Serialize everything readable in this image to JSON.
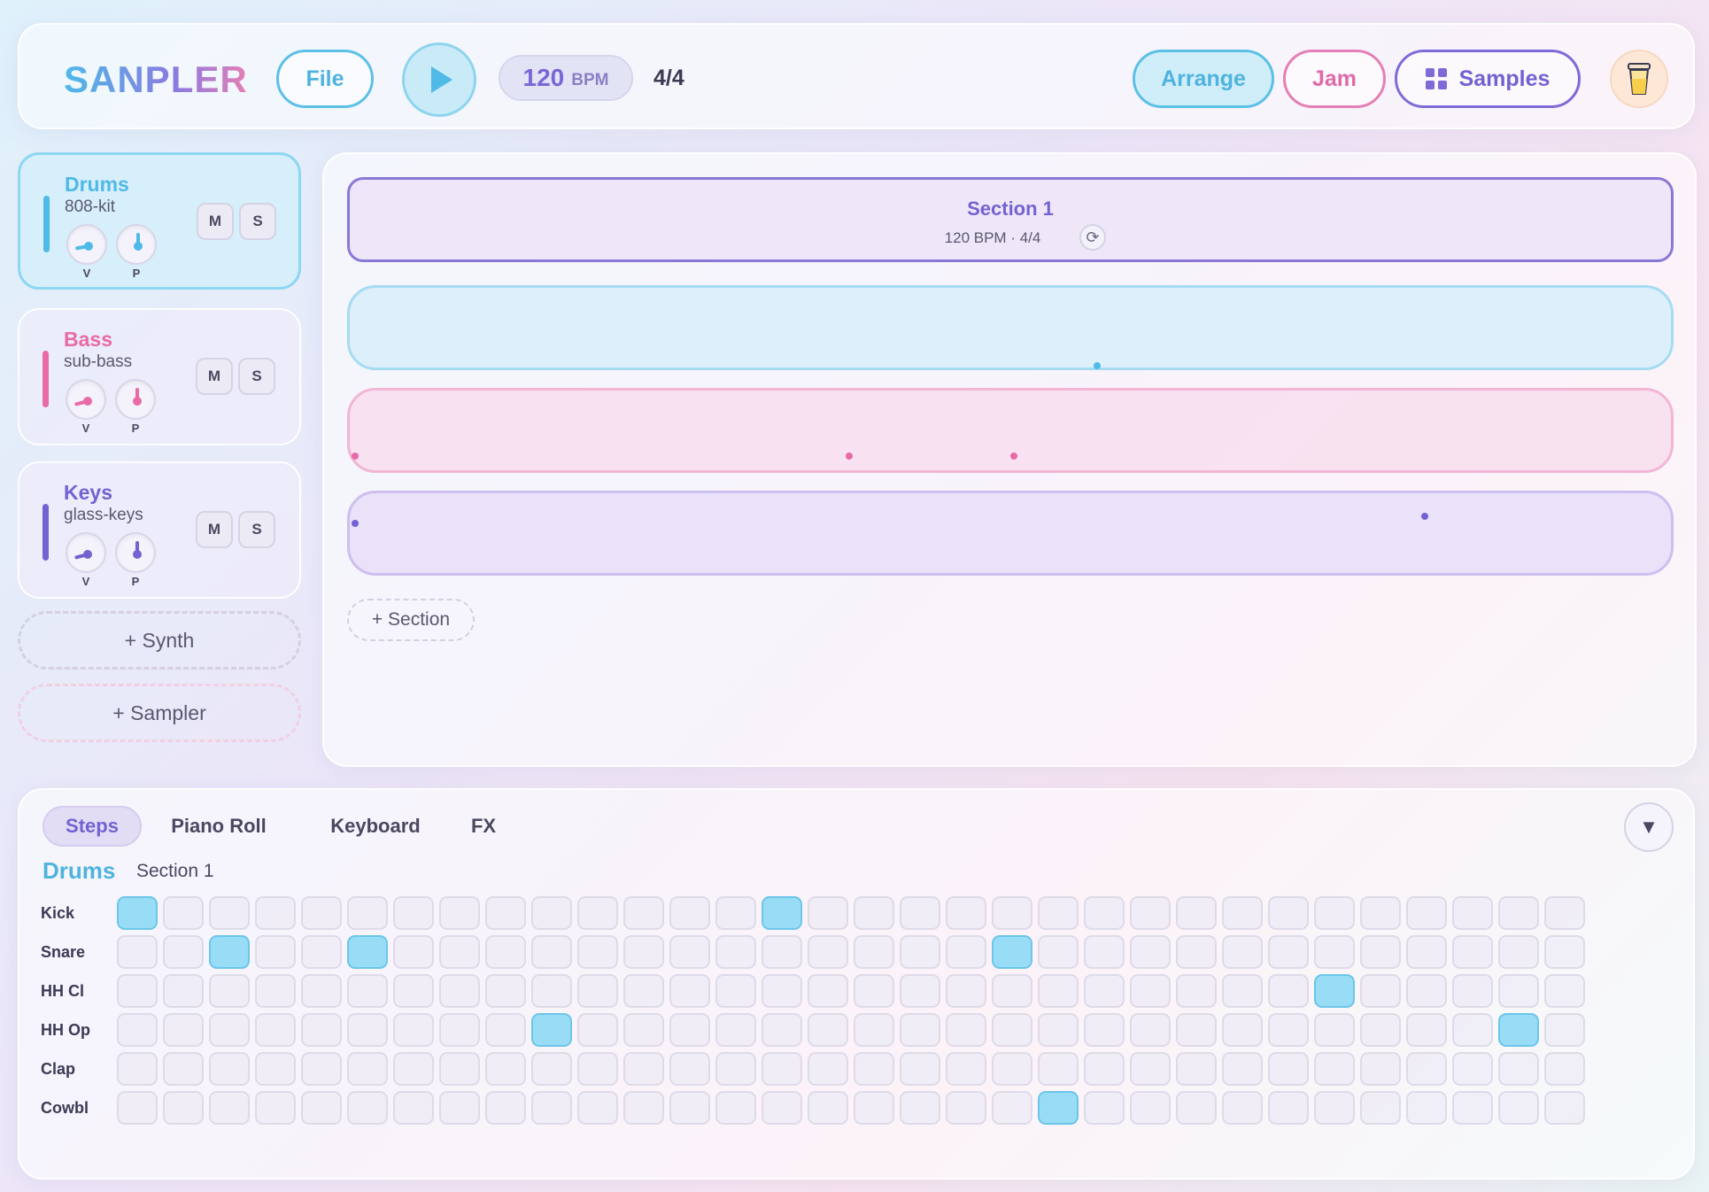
{
  "header": {
    "logo": "SANPLER",
    "file_label": "File",
    "bpm_value": "120",
    "bpm_unit": "BPM",
    "time_signature": "4/4",
    "arrange_label": "Arrange",
    "jam_label": "Jam",
    "samples_label": "Samples"
  },
  "tracks": [
    {
      "name": "Drums",
      "sample": "808-kit",
      "color": "#4fb9e8",
      "vol_label": "V",
      "pan_label": "P",
      "mute_label": "M",
      "solo_label": "S",
      "active": true
    },
    {
      "name": "Bass",
      "sample": "sub-bass",
      "color": "#e86aa6",
      "vol_label": "V",
      "pan_label": "P",
      "mute_label": "M",
      "solo_label": "S",
      "active": false
    },
    {
      "name": "Keys",
      "sample": "glass-keys",
      "color": "#7362d2",
      "vol_label": "V",
      "pan_label": "P",
      "mute_label": "M",
      "solo_label": "S",
      "active": false
    }
  ],
  "add_synth_label": "+ Synth",
  "add_sampler_label": "+ Sampler",
  "arrange": {
    "section_title": "Section 1",
    "section_meta": "120 BPM · 4/4",
    "add_section_label": "+ Section"
  },
  "editor": {
    "tabs": [
      "Steps",
      "Piano Roll",
      "Keyboard",
      "FX"
    ],
    "active_tab": "Steps",
    "track_name": "Drums",
    "section_name": "Section 1",
    "rows": [
      {
        "label": "Kick",
        "on": [
          0,
          14
        ]
      },
      {
        "label": "Snare",
        "on": [
          2,
          5,
          19
        ]
      },
      {
        "label": "HH Cl",
        "on": [
          26
        ]
      },
      {
        "label": "HH Op",
        "on": [
          9,
          30
        ]
      },
      {
        "label": "Clap",
        "on": []
      },
      {
        "label": "Cowbl",
        "on": [
          20
        ]
      }
    ],
    "steps": 32
  },
  "icons": {
    "play": "play-icon",
    "samples": "grid-icon",
    "cup": "cup-icon",
    "loop": "loop-icon",
    "collapse": "chevron-down-icon"
  }
}
